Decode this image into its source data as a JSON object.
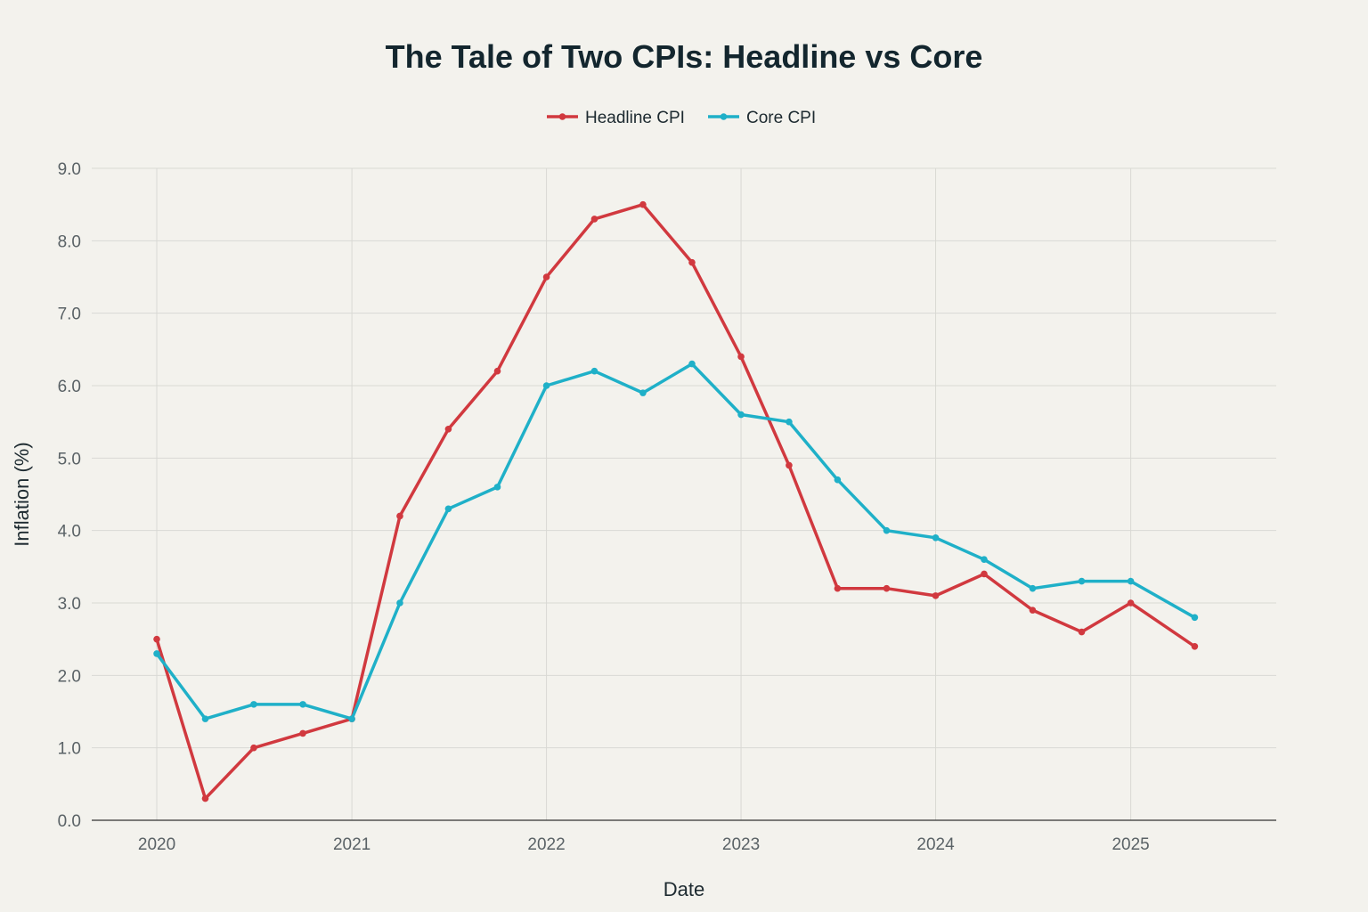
{
  "chart_data": {
    "type": "line",
    "title": "The Tale of Two CPIs: Headline vs Core",
    "xlabel": "Date",
    "ylabel": "Inflation (%)",
    "ylim": [
      0,
      9
    ],
    "xlim": [
      "2019-09-01",
      "2025-10-01"
    ],
    "y_ticks": [
      "0.0",
      "1.0",
      "2.0",
      "3.0",
      "4.0",
      "5.0",
      "6.0",
      "7.0",
      "8.0",
      "9.0"
    ],
    "x_ticks": [
      "2020",
      "2021",
      "2022",
      "2023",
      "2024",
      "2025"
    ],
    "grid": true,
    "legend_position": "top-center",
    "x": [
      "2020-01-01",
      "2020-04-01",
      "2020-07-01",
      "2020-10-01",
      "2021-01-01",
      "2021-04-01",
      "2021-07-01",
      "2021-10-01",
      "2022-01-01",
      "2022-04-01",
      "2022-07-01",
      "2022-10-01",
      "2023-01-01",
      "2023-04-01",
      "2023-07-01",
      "2023-10-01",
      "2024-01-01",
      "2024-04-01",
      "2024-07-01",
      "2024-10-01",
      "2025-01-01",
      "2025-05-01"
    ],
    "series": [
      {
        "name": "Headline CPI",
        "color": "#d1393f",
        "values": [
          2.5,
          0.3,
          1.0,
          1.2,
          1.4,
          4.2,
          5.4,
          6.2,
          7.5,
          8.3,
          8.5,
          7.7,
          6.4,
          4.9,
          3.2,
          3.2,
          3.1,
          3.4,
          2.9,
          2.6,
          3.0,
          2.4
        ]
      },
      {
        "name": "Core CPI",
        "color": "#1fb0c8",
        "values": [
          2.3,
          1.4,
          1.6,
          1.6,
          1.4,
          3.0,
          4.3,
          4.6,
          6.0,
          6.2,
          5.9,
          6.3,
          5.6,
          5.5,
          4.7,
          4.0,
          3.9,
          3.6,
          3.2,
          3.3,
          3.3,
          2.8
        ]
      }
    ]
  }
}
